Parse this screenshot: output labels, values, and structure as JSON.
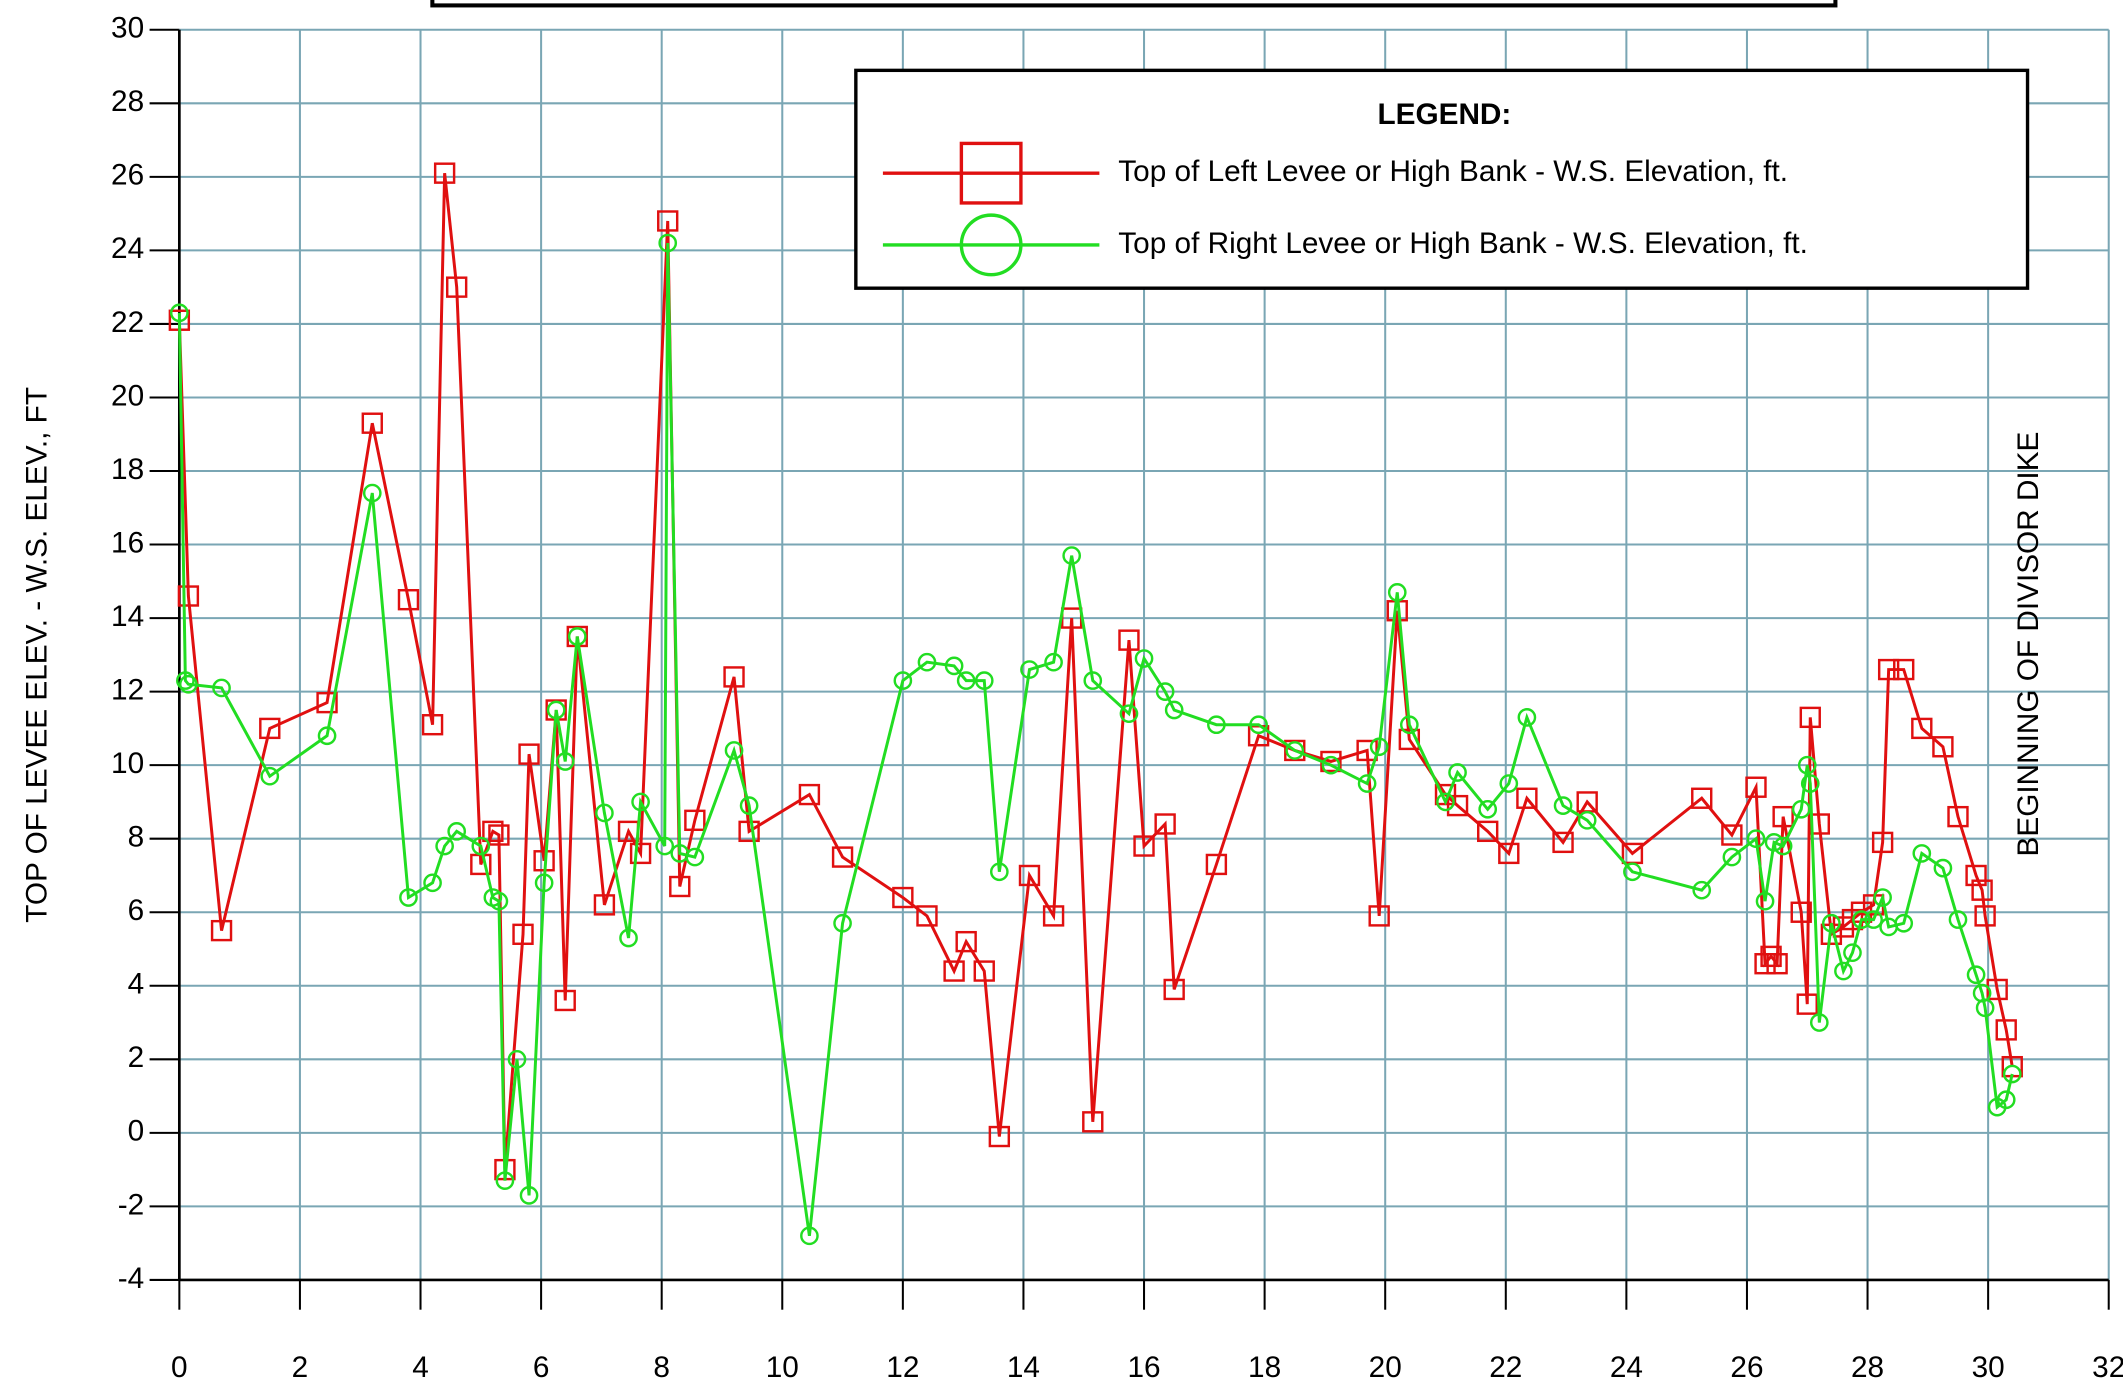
{
  "chart_data": {
    "type": "line",
    "y_label": "TOP OF LEVEE ELEV. - W.S. ELEV., FT",
    "annotation": "BEGINNING OF DIVISOR DIKE",
    "legend_title": "LEGEND:",
    "legend": "top-right",
    "grid": true,
    "xlim": [
      0,
      32
    ],
    "ylim": [
      -4,
      30
    ],
    "xticks": [
      0,
      2,
      4,
      6,
      8,
      10,
      12,
      14,
      16,
      18,
      20,
      22,
      24,
      26,
      28,
      30,
      32
    ],
    "yticks": [
      -4,
      -2,
      0,
      2,
      4,
      6,
      8,
      10,
      12,
      14,
      16,
      18,
      20,
      22,
      24,
      26,
      28,
      30
    ],
    "series": [
      {
        "name": "Top of Left Levee or High Bank - W.S. Elevation, ft.",
        "color": "#e01010",
        "marker": "square",
        "x": [
          0.0,
          0.15,
          0.7,
          1.5,
          2.45,
          3.2,
          3.8,
          4.2,
          4.4,
          4.6,
          5.0,
          5.2,
          5.3,
          5.4,
          5.7,
          5.8,
          6.05,
          6.25,
          6.4,
          6.6,
          7.05,
          7.45,
          7.65,
          8.1,
          8.3,
          8.55,
          9.2,
          9.45,
          10.45,
          11.0,
          12.0,
          12.4,
          12.85,
          13.05,
          13.35,
          13.6,
          14.1,
          14.5,
          14.8,
          15.15,
          15.75,
          16.0,
          16.35,
          16.5,
          17.2,
          17.9,
          18.5,
          19.1,
          19.7,
          19.9,
          20.2,
          20.4,
          21.0,
          21.2,
          21.7,
          22.05,
          22.35,
          22.95,
          23.35,
          24.1,
          25.25,
          25.75,
          26.15,
          26.3,
          26.4,
          26.5,
          26.6,
          26.9,
          27.0,
          27.05,
          27.2,
          27.4,
          27.6,
          27.75,
          27.9,
          28.1,
          28.25,
          28.35,
          28.6,
          28.9,
          29.25,
          29.5,
          29.8,
          29.9,
          29.95,
          30.15,
          30.3,
          30.4
        ],
        "values": [
          22.1,
          14.6,
          5.5,
          11.0,
          11.7,
          19.3,
          14.5,
          11.1,
          26.1,
          23.0,
          7.3,
          8.2,
          8.1,
          -1.0,
          5.4,
          10.3,
          7.4,
          11.5,
          3.6,
          13.5,
          6.2,
          8.2,
          7.6,
          24.8,
          6.7,
          8.5,
          12.4,
          8.2,
          9.2,
          7.5,
          6.4,
          5.9,
          4.4,
          5.2,
          4.4,
          -0.1,
          7.0,
          5.9,
          14.0,
          0.3,
          13.4,
          7.8,
          8.4,
          3.9,
          7.3,
          10.8,
          10.4,
          10.1,
          10.4,
          5.9,
          14.2,
          10.7,
          9.2,
          8.9,
          8.2,
          7.6,
          9.1,
          7.9,
          9.0,
          7.6,
          9.1,
          8.1,
          9.4,
          4.6,
          4.8,
          4.6,
          8.6,
          6.0,
          3.5,
          11.3,
          8.4,
          5.4,
          5.6,
          5.8,
          6.0,
          6.2,
          7.9,
          12.6,
          12.6,
          11.0,
          10.5,
          8.6,
          7.0,
          6.6,
          5.9,
          3.9,
          2.8,
          1.8
        ]
      },
      {
        "name": "Top of Right Levee or High Bank - W.S. Elevation, ft.",
        "color": "#22dd22",
        "marker": "circle",
        "x": [
          0.0,
          0.1,
          0.15,
          0.7,
          1.5,
          2.45,
          3.2,
          3.8,
          4.2,
          4.4,
          4.6,
          5.0,
          5.2,
          5.3,
          5.4,
          5.6,
          5.8,
          6.05,
          6.25,
          6.4,
          6.6,
          7.05,
          7.45,
          7.65,
          8.05,
          8.1,
          8.3,
          8.55,
          9.2,
          9.45,
          10.45,
          11.0,
          12.0,
          12.4,
          12.85,
          13.05,
          13.35,
          13.6,
          14.1,
          14.5,
          14.8,
          15.15,
          15.75,
          16.0,
          16.35,
          16.5,
          17.2,
          17.9,
          18.5,
          19.1,
          19.7,
          19.9,
          20.2,
          20.4,
          21.0,
          21.2,
          21.7,
          22.05,
          22.35,
          22.95,
          23.35,
          24.1,
          25.25,
          25.75,
          26.15,
          26.3,
          26.45,
          26.6,
          26.9,
          27.0,
          27.05,
          27.2,
          27.4,
          27.6,
          27.75,
          27.9,
          28.1,
          28.25,
          28.35,
          28.6,
          28.9,
          29.25,
          29.5,
          29.8,
          29.9,
          29.95,
          30.15,
          30.3,
          30.4
        ],
        "values": [
          22.3,
          12.3,
          12.2,
          12.1,
          9.7,
          10.8,
          17.4,
          6.4,
          6.8,
          7.8,
          8.2,
          7.8,
          6.4,
          6.3,
          -1.3,
          2.0,
          -1.7,
          6.8,
          11.5,
          10.1,
          13.5,
          8.7,
          5.3,
          9.0,
          7.8,
          24.2,
          7.6,
          7.5,
          10.4,
          8.9,
          -2.8,
          5.7,
          12.3,
          12.8,
          12.7,
          12.3,
          12.3,
          7.1,
          12.6,
          12.8,
          15.7,
          12.3,
          11.4,
          12.9,
          12.0,
          11.5,
          11.1,
          11.1,
          10.4,
          10.0,
          9.5,
          10.5,
          14.7,
          11.1,
          9.0,
          9.8,
          8.8,
          9.5,
          11.3,
          8.9,
          8.5,
          7.1,
          6.6,
          7.5,
          8.0,
          6.3,
          7.9,
          7.8,
          8.8,
          10.0,
          9.5,
          3.0,
          5.7,
          4.4,
          4.9,
          5.8,
          5.8,
          6.4,
          5.6,
          5.7,
          7.6,
          7.2,
          5.8,
          4.3,
          3.8,
          3.4,
          0.7,
          0.9,
          1.6
        ]
      }
    ]
  }
}
